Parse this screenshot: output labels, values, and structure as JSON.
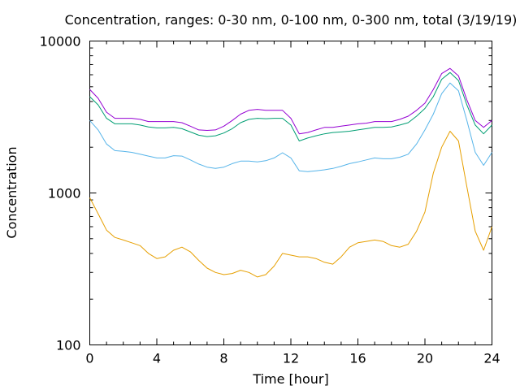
{
  "chart_data": {
    "type": "line",
    "title": "Concentration, ranges: 0-30 nm, 0-100 nm, 0-300 nm, total (3/19/19)",
    "xlabel": "Time [hour]",
    "ylabel": "Concentration",
    "xlim": [
      0,
      24
    ],
    "ylim": [
      100,
      10000
    ],
    "yscale": "log",
    "grid": false,
    "legend": "none",
    "xticks": [
      0,
      4,
      8,
      12,
      16,
      20,
      24
    ],
    "yticks": [
      100,
      1000,
      10000
    ],
    "xtick_labels": [
      "0",
      "4",
      "8",
      "12",
      "16",
      "20",
      "24"
    ],
    "ytick_labels": [
      "100",
      "1000",
      "10000"
    ],
    "x": [
      0,
      0.5,
      1,
      1.5,
      2,
      2.5,
      3,
      3.5,
      4,
      4.5,
      5,
      5.5,
      6,
      6.5,
      7,
      7.5,
      8,
      8.5,
      9,
      9.5,
      10,
      10.5,
      11,
      11.5,
      12,
      12.5,
      13,
      13.5,
      14,
      14.5,
      15,
      15.5,
      16,
      16.5,
      17,
      17.5,
      18,
      18.5,
      19,
      19.5,
      20,
      20.5,
      21,
      21.5,
      22,
      22.5,
      23,
      23.5,
      24
    ],
    "series": [
      {
        "color": "#e69f00",
        "values": [
          930,
          730,
          570,
          510,
          490,
          470,
          450,
          400,
          370,
          380,
          420,
          440,
          410,
          360,
          320,
          300,
          290,
          295,
          310,
          300,
          280,
          290,
          330,
          400,
          390,
          380,
          380,
          370,
          350,
          340,
          380,
          440,
          470,
          480,
          490,
          480,
          450,
          440,
          460,
          560,
          750,
          1350,
          2000,
          2550,
          2200,
          1100,
          560,
          420,
          600
        ]
      },
      {
        "color": "#56b4e9",
        "values": [
          3000,
          2600,
          2100,
          1900,
          1880,
          1850,
          1800,
          1750,
          1700,
          1700,
          1760,
          1750,
          1650,
          1550,
          1480,
          1450,
          1480,
          1560,
          1620,
          1620,
          1600,
          1630,
          1700,
          1840,
          1700,
          1400,
          1380,
          1400,
          1420,
          1450,
          1500,
          1560,
          1600,
          1650,
          1700,
          1680,
          1680,
          1720,
          1800,
          2100,
          2600,
          3300,
          4500,
          5300,
          4700,
          3000,
          1850,
          1520,
          1850
        ]
      },
      {
        "color": "#009e73",
        "values": [
          4300,
          3800,
          3100,
          2850,
          2850,
          2850,
          2800,
          2720,
          2680,
          2680,
          2700,
          2650,
          2520,
          2400,
          2350,
          2380,
          2480,
          2650,
          2900,
          3050,
          3100,
          3080,
          3100,
          3100,
          2800,
          2200,
          2300,
          2380,
          2450,
          2500,
          2520,
          2550,
          2600,
          2650,
          2700,
          2700,
          2720,
          2800,
          2900,
          3200,
          3600,
          4300,
          5600,
          6200,
          5500,
          3800,
          2800,
          2450,
          2800
        ]
      },
      {
        "color": "#9400d3",
        "values": [
          4800,
          4200,
          3400,
          3100,
          3100,
          3100,
          3050,
          2950,
          2950,
          2950,
          2950,
          2900,
          2750,
          2600,
          2580,
          2600,
          2750,
          3000,
          3300,
          3500,
          3550,
          3500,
          3500,
          3500,
          3100,
          2450,
          2500,
          2600,
          2700,
          2700,
          2750,
          2800,
          2850,
          2880,
          2950,
          2950,
          2950,
          3050,
          3200,
          3500,
          3900,
          4800,
          6100,
          6600,
          5900,
          4100,
          3000,
          2700,
          3000
        ]
      }
    ]
  }
}
